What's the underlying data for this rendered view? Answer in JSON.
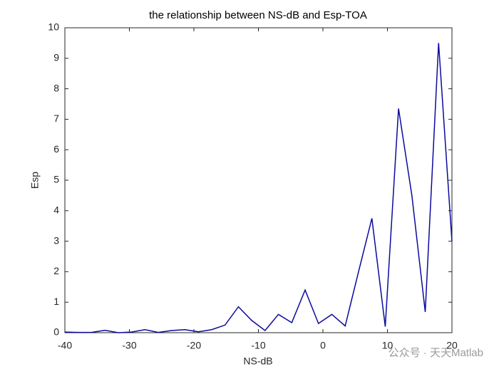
{
  "chart_data": {
    "type": "line",
    "title": "the relationship between NS-dB and Esp-TOA",
    "x_label": "NS-dB",
    "y_label": "Esp",
    "x": [
      -40,
      -37.93,
      -35.86,
      -33.79,
      -31.72,
      -29.66,
      -27.59,
      -25.52,
      -23.45,
      -21.38,
      -19.31,
      -17.24,
      -15.17,
      -13.1,
      -11.03,
      -8.97,
      -6.9,
      -4.83,
      -2.76,
      -0.69,
      1.38,
      3.45,
      5.52,
      7.59,
      9.66,
      11.72,
      13.79,
      15.86,
      17.93,
      20
    ],
    "series": [
      {
        "color": "#0a0a9e",
        "values": [
          0.02,
          0.01,
          0.01,
          0.08,
          0.0,
          0.02,
          0.1,
          0.01,
          0.07,
          0.1,
          0.03,
          0.1,
          0.25,
          0.85,
          0.4,
          0.07,
          0.6,
          0.33,
          1.4,
          0.3,
          0.6,
          0.22,
          2.0,
          3.75,
          0.2,
          7.35,
          4.5,
          0.68,
          9.5,
          3.0
        ]
      }
    ],
    "xlim": [
      -40,
      20
    ],
    "xticks": [
      -40,
      -30,
      -20,
      -10,
      0,
      10,
      20
    ],
    "ylim": [
      0,
      10
    ],
    "yticks": [
      0,
      1,
      2,
      3,
      4,
      5,
      6,
      7,
      8,
      9,
      10
    ],
    "watermark": "公众号 · 天天Matlab"
  }
}
